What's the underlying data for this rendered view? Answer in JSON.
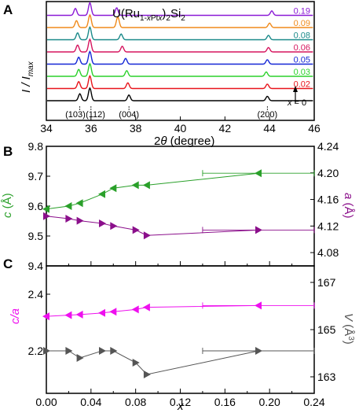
{
  "chart_data": [
    {
      "panel": "A",
      "type": "line",
      "title": "U(Ru1-xPtx)2Si2",
      "xlabel": "2θ (degree)",
      "ylabel": "I / Imax",
      "xlim": [
        34,
        46
      ],
      "xticks": [
        "34",
        "36",
        "38",
        "40",
        "42",
        "44",
        "46"
      ],
      "peak_labels": [
        {
          "text": "(103)",
          "x": 35.5
        },
        {
          "text": "(112)",
          "x": 36.0
        },
        {
          "text": "(004)",
          "x": 37.7
        },
        {
          "text": "(200)",
          "x": 43.9
        }
      ],
      "x_annotation": "x = 0",
      "series": [
        {
          "name": "x = 0",
          "color": "#000000",
          "peaks": [
            [
              35.5,
              0.55
            ],
            [
              35.95,
              1.0
            ],
            [
              37.7,
              0.45
            ],
            [
              43.9,
              0.35
            ]
          ]
        },
        {
          "name": "0.02",
          "color": "#e8151c",
          "peaks": [
            [
              35.45,
              0.55
            ],
            [
              35.95,
              1.0
            ],
            [
              37.65,
              0.45
            ],
            [
              43.9,
              0.35
            ]
          ]
        },
        {
          "name": "0.03",
          "color": "#2bd12b",
          "peaks": [
            [
              35.45,
              0.55
            ],
            [
              35.95,
              1.0
            ],
            [
              37.6,
              0.45
            ],
            [
              43.85,
              0.35
            ]
          ]
        },
        {
          "name": "0.05",
          "color": "#1426d6",
          "peaks": [
            [
              35.45,
              0.55
            ],
            [
              35.95,
              1.0
            ],
            [
              37.55,
              0.45
            ],
            [
              43.9,
              0.35
            ]
          ]
        },
        {
          "name": "0.06",
          "color": "#d6155e",
          "peaks": [
            [
              35.4,
              0.55
            ],
            [
              35.95,
              1.0
            ],
            [
              37.4,
              0.45
            ],
            [
              43.95,
              0.35
            ]
          ]
        },
        {
          "name": "0.08",
          "color": "#1a8a8a",
          "peaks": [
            [
              35.4,
              0.55
            ],
            [
              35.95,
              1.0
            ],
            [
              37.35,
              0.45
            ],
            [
              43.95,
              0.35
            ]
          ]
        },
        {
          "name": "0.09",
          "color": "#f08a1a",
          "peaks": [
            [
              35.35,
              0.55
            ],
            [
              35.95,
              1.0
            ],
            [
              37.2,
              0.85
            ],
            [
              44.0,
              0.35
            ]
          ]
        },
        {
          "name": "0.19",
          "color": "#8a1ad6",
          "peaks": [
            [
              35.3,
              0.55
            ],
            [
              35.95,
              1.0
            ],
            [
              37.15,
              0.6
            ],
            [
              44.1,
              0.35
            ]
          ]
        }
      ]
    },
    {
      "panel": "B",
      "type": "scatter",
      "xlim": [
        0.0,
        0.24
      ],
      "left_axis": {
        "label": "c (Å)",
        "ylim": [
          9.4,
          9.8
        ],
        "ticks": [
          "9.4",
          "9.5",
          "9.6",
          "9.7",
          "9.8"
        ],
        "color": "#2aa02a"
      },
      "right_axis": {
        "label": "a (Å)",
        "ylim": [
          4.06,
          4.24
        ],
        "ticks": [
          "4.08",
          "4.12",
          "4.16",
          "4.20",
          "4.24"
        ],
        "color": "#8b0f8b"
      },
      "series": [
        {
          "name": "c",
          "axis": "left",
          "color": "#2aa02a",
          "x": [
            0.0,
            0.02,
            0.03,
            0.05,
            0.06,
            0.08,
            0.09,
            0.19
          ],
          "y": [
            9.59,
            9.6,
            9.61,
            9.64,
            9.66,
            9.67,
            9.67,
            9.71
          ],
          "xerr": [
            0,
            0,
            0,
            0,
            0,
            0,
            0,
            0.05
          ]
        },
        {
          "name": "a",
          "axis": "right",
          "color": "#8b0f8b",
          "x": [
            0.0,
            0.02,
            0.03,
            0.05,
            0.06,
            0.08,
            0.09,
            0.19
          ],
          "y": [
            4.135,
            4.131,
            4.128,
            4.124,
            4.12,
            4.114,
            4.106,
            4.114
          ],
          "xerr": [
            0,
            0,
            0,
            0,
            0,
            0,
            0,
            0.05
          ]
        }
      ]
    },
    {
      "panel": "C",
      "type": "scatter",
      "xlabel": "x",
      "xlim": [
        0.0,
        0.24
      ],
      "xticks": [
        "0.00",
        "0.04",
        "0.08",
        "0.12",
        "0.16",
        "0.20",
        "0.24"
      ],
      "left_axis": {
        "label": "c/a",
        "ylim": [
          2.05,
          2.5
        ],
        "ticks": [
          "2.2",
          "2.4"
        ],
        "color": "#ee10ee"
      },
      "right_axis": {
        "label": "V (Å³)",
        "ylim": [
          162.3,
          167.7
        ],
        "ticks": [
          "163",
          "165",
          "167"
        ],
        "color": "#555555"
      },
      "series": [
        {
          "name": "c/a",
          "axis": "left",
          "color": "#ee10ee",
          "x": [
            0.0,
            0.02,
            0.03,
            0.05,
            0.06,
            0.08,
            0.09,
            0.19
          ],
          "y": [
            2.322,
            2.326,
            2.328,
            2.334,
            2.338,
            2.346,
            2.354,
            2.36
          ],
          "xerr": [
            0,
            0,
            0,
            0,
            0,
            0,
            0,
            0.05
          ]
        },
        {
          "name": "V",
          "axis": "right",
          "color": "#555555",
          "x": [
            0.0,
            0.02,
            0.03,
            0.05,
            0.06,
            0.08,
            0.09,
            0.19
          ],
          "y": [
            164.1,
            164.1,
            163.8,
            164.1,
            164.1,
            163.6,
            163.1,
            164.1
          ],
          "xerr": [
            0,
            0,
            0,
            0,
            0,
            0,
            0,
            0.05
          ]
        }
      ]
    }
  ]
}
